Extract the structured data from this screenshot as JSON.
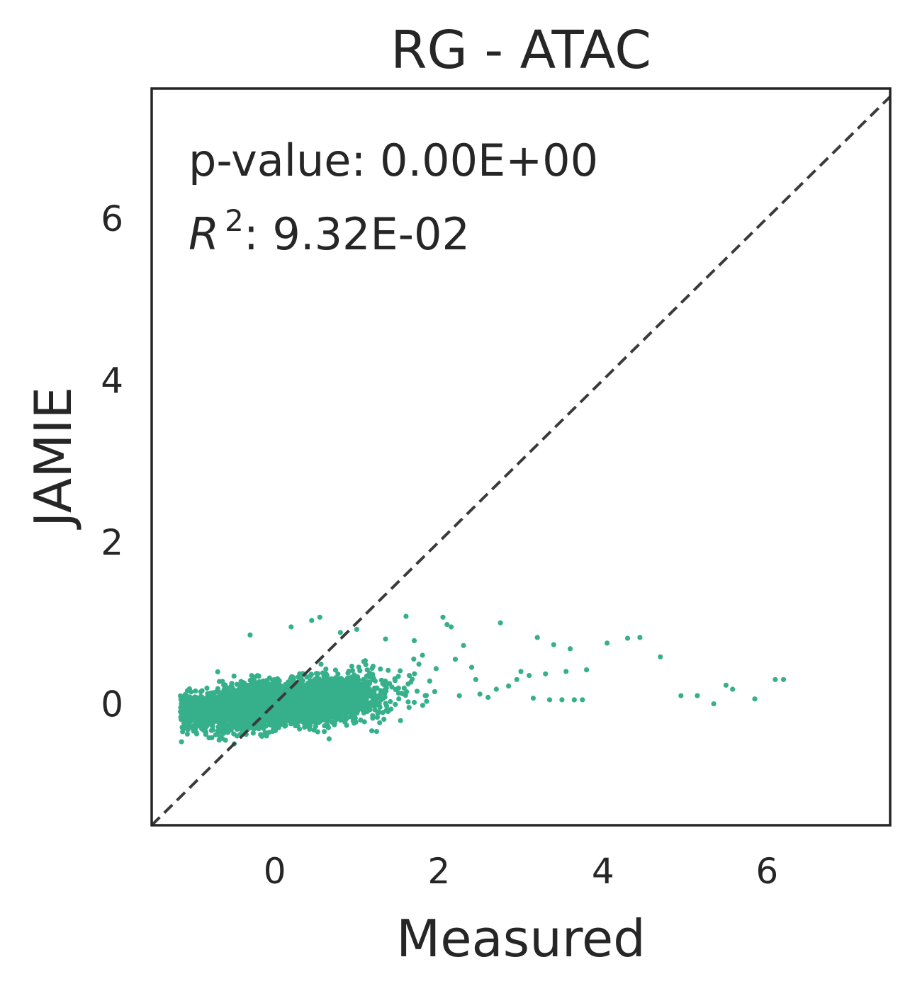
{
  "chart_data": {
    "type": "scatter",
    "title": "RG - ATAC",
    "xlabel": "Measured",
    "ylabel": "JAMIE",
    "xlim": [
      -1.5,
      7.5
    ],
    "ylim": [
      -1.5,
      7.6
    ],
    "xticks": [
      "0",
      "2",
      "4",
      "6"
    ],
    "yticks": [
      "0",
      "2",
      "4",
      "6"
    ],
    "xtick_values": [
      0,
      2,
      4,
      6
    ],
    "ytick_values": [
      0,
      2,
      4,
      6
    ],
    "grid": false,
    "annotations": {
      "pvalue_label": "p-value: 0.00E+00",
      "r2_symbol": "R",
      "r2_exp": "2",
      "r2_value": ": 9.32E-02"
    },
    "reference_line": {
      "style": "dashed",
      "from": [
        -1.5,
        -1.5
      ],
      "to": [
        7.5,
        7.5
      ],
      "color": "#3a3a3a"
    },
    "point_color": "#36b08a",
    "cluster": {
      "n": 4200,
      "x_center": 0.1,
      "x_spread": 0.55,
      "y_center": 0.0,
      "y_slope": 0.09,
      "y_spread": 0.12
    },
    "series": [
      {
        "values": [
          [
            1.6,
            1.08
          ],
          [
            2.05,
            1.07
          ],
          [
            2.75,
            1.0
          ],
          [
            2.1,
            0.98
          ],
          [
            2.15,
            0.95
          ],
          [
            1.35,
            0.8
          ],
          [
            1.7,
            0.78
          ],
          [
            2.3,
            0.72
          ],
          [
            3.2,
            0.82
          ],
          [
            3.4,
            0.73
          ],
          [
            3.6,
            0.68
          ],
          [
            3.55,
            0.4
          ],
          [
            3.3,
            0.37
          ],
          [
            3.1,
            0.35
          ],
          [
            2.95,
            0.3
          ],
          [
            2.7,
            0.18
          ],
          [
            2.5,
            0.12
          ],
          [
            3.15,
            0.07
          ],
          [
            3.35,
            0.05
          ],
          [
            3.5,
            0.05
          ],
          [
            3.65,
            0.05
          ],
          [
            3.75,
            0.05
          ],
          [
            3.8,
            0.42
          ],
          [
            4.05,
            0.75
          ],
          [
            4.3,
            0.81
          ],
          [
            4.45,
            0.82
          ],
          [
            4.7,
            0.58
          ],
          [
            4.95,
            0.1
          ],
          [
            5.15,
            0.1
          ],
          [
            5.35,
            0.0
          ],
          [
            5.5,
            0.23
          ],
          [
            5.58,
            0.18
          ],
          [
            5.85,
            0.06
          ],
          [
            6.1,
            0.3
          ],
          [
            6.2,
            0.3
          ],
          [
            2.6,
            0.08
          ],
          [
            2.85,
            0.22
          ],
          [
            3.0,
            0.4
          ],
          [
            2.4,
            0.45
          ],
          [
            2.2,
            0.55
          ],
          [
            0.45,
            1.03
          ],
          [
            0.55,
            1.07
          ],
          [
            -0.3,
            0.85
          ],
          [
            0.2,
            0.95
          ],
          [
            0.8,
            0.88
          ],
          [
            1.0,
            0.92
          ],
          [
            -1.1,
            -0.25
          ],
          [
            -0.8,
            -0.42
          ],
          [
            -0.6,
            -0.45
          ],
          [
            -1.05,
            0.08
          ],
          [
            1.85,
            0.03
          ],
          [
            1.95,
            0.15
          ],
          [
            2.25,
            0.1
          ],
          [
            2.45,
            0.3
          ],
          [
            1.8,
            0.6
          ]
        ]
      }
    ]
  }
}
